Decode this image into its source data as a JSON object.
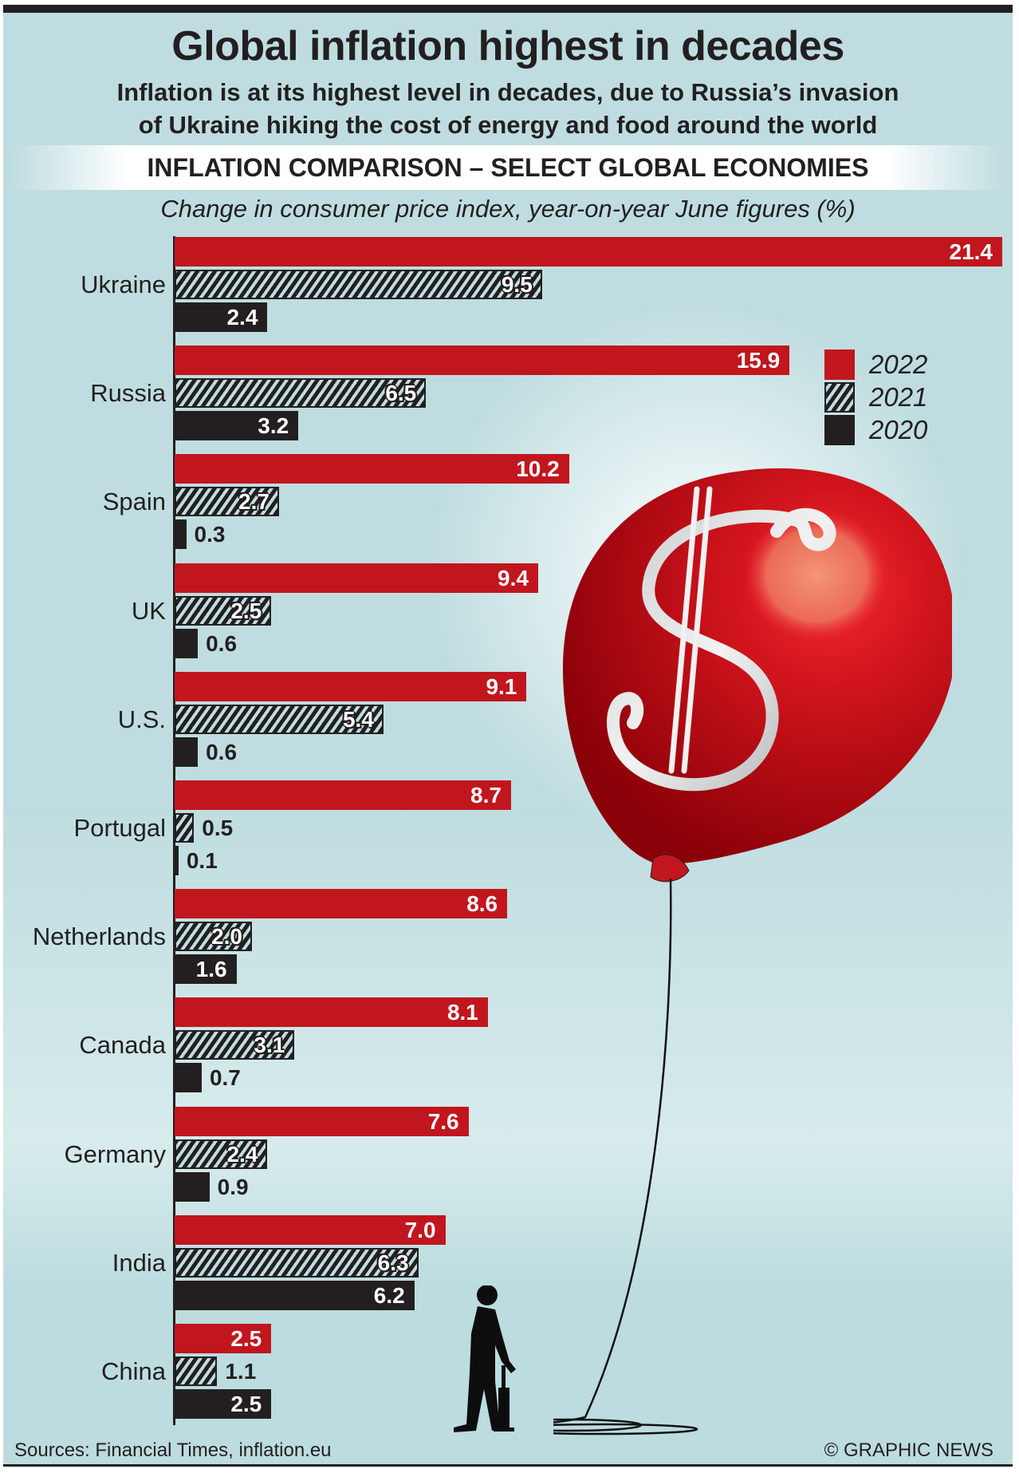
{
  "header": {
    "title": "Global inflation highest in decades",
    "subtitle_line1": "Inflation is at its highest level in decades, due to Russia’s invasion",
    "subtitle_line2": "of Ukraine hiking the cost of energy and food around the world",
    "section_title": "INFLATION COMPARISON – SELECT GLOBAL ECONOMIES"
  },
  "chart_data": {
    "type": "bar",
    "orientation": "horizontal",
    "title": "INFLATION COMPARISON – SELECT GLOBAL ECONOMIES",
    "subtitle": "Change in consumer price index, year-on-year June figures (%)",
    "xlabel": "",
    "ylabel": "",
    "xlim": [
      0,
      21.4
    ],
    "grid": false,
    "legend_position": "top-right",
    "categories": [
      "Ukraine",
      "Russia",
      "Spain",
      "UK",
      "U.S.",
      "Portugal",
      "Netherlands",
      "Canada",
      "Germany",
      "India",
      "China"
    ],
    "series": [
      {
        "name": "2022",
        "style": "solid-red",
        "color": "#c1161e",
        "values": [
          21.4,
          15.9,
          10.2,
          9.4,
          9.1,
          8.7,
          8.6,
          8.1,
          7.6,
          7.0,
          2.5
        ],
        "labels": [
          "21.4",
          "15.9",
          "10.2",
          "9.4",
          "9.1",
          "8.7",
          "8.6",
          "8.1",
          "7.6",
          "7.0",
          "2.5"
        ]
      },
      {
        "name": "2021",
        "style": "hatched",
        "color": "#231f20",
        "values": [
          9.5,
          6.5,
          2.7,
          2.5,
          5.4,
          0.5,
          2.0,
          3.1,
          2.4,
          6.3,
          1.1
        ],
        "labels": [
          "9.5",
          "6.5",
          "2.7",
          "2.5",
          "5.4",
          "0.5",
          "2.0",
          "3.1",
          "2.4",
          "6.3",
          "1.1"
        ]
      },
      {
        "name": "2020",
        "style": "solid-black",
        "color": "#231f20",
        "values": [
          2.4,
          3.2,
          0.3,
          0.6,
          0.6,
          0.1,
          1.6,
          0.7,
          0.9,
          6.2,
          2.5
        ],
        "labels": [
          "2.4",
          "3.2",
          "0.3",
          "0.6",
          "0.6",
          "0.1",
          "1.6",
          "0.7",
          "0.9",
          "6.2",
          "2.5"
        ]
      }
    ]
  },
  "legend": {
    "items": [
      {
        "label": "2022",
        "color": "#c1161e",
        "style": "solid"
      },
      {
        "label": "2021",
        "color": "#231f20",
        "style": "hatched"
      },
      {
        "label": "2020",
        "color": "#231f20",
        "style": "solid"
      }
    ]
  },
  "illustration": {
    "description_icon": "balloon-with-dollar-sign-icon",
    "figure_icon": "man-with-pump-icon"
  },
  "footer": {
    "source": "Sources: Financial Times, inflation.eu",
    "credit": "© GRAPHIC NEWS"
  }
}
